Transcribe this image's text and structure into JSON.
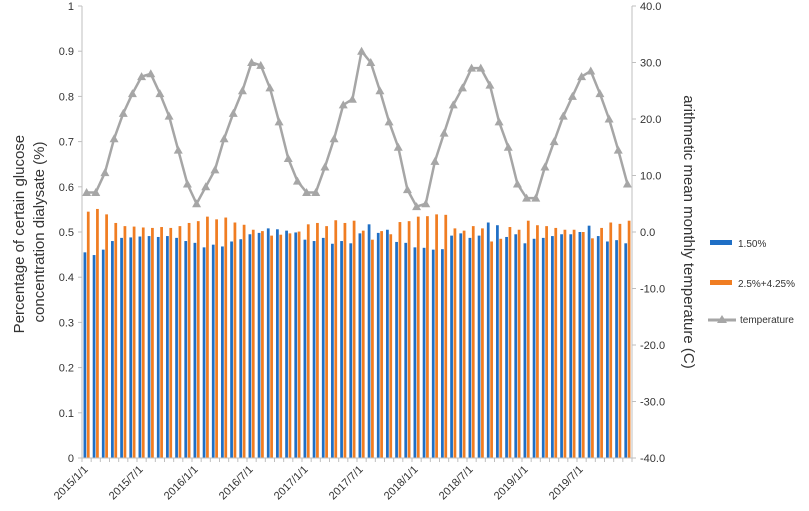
{
  "chart_data": {
    "type": "bar",
    "combo": "bar + line (secondary axis)",
    "title": "",
    "ylabel": [
      "Percentage of certain glucose",
      "concentration dialysate   (%)"
    ],
    "y2label": "arithmetic mean monthly  temperature  (C)",
    "xlabel": "",
    "ylim": [
      0,
      1
    ],
    "y_ticks": [
      "0",
      "0.1",
      "0.2",
      "0.3",
      "0.4",
      "0.5",
      "0.6",
      "0.7",
      "0.8",
      "0.9",
      "1"
    ],
    "y2lim": [
      -40,
      40
    ],
    "y2_ticks": [
      "-40.0",
      "-30.0",
      "-20.0",
      "-10.0",
      "0.0",
      "10.0",
      "20.0",
      "30.0",
      "40.0"
    ],
    "x_tick_labels": [
      {
        "index": 0,
        "label": "2015/1/1"
      },
      {
        "index": 6,
        "label": "2015/7/1"
      },
      {
        "index": 12,
        "label": "2016/1/1"
      },
      {
        "index": 18,
        "label": "2016/7/1"
      },
      {
        "index": 24,
        "label": "2017/1/1"
      },
      {
        "index": 30,
        "label": "2017/7/1"
      },
      {
        "index": 36,
        "label": "2018/1/1"
      },
      {
        "index": 42,
        "label": "2018/7/1"
      },
      {
        "index": 48,
        "label": "2019/1/1"
      },
      {
        "index": 54,
        "label": "2019/7/1"
      }
    ],
    "grid": false,
    "legend_position": "right",
    "series": [
      {
        "name": "1.50%",
        "kind": "bar",
        "axis": "left",
        "color": "#1f6fc5",
        "values": [
          0.455,
          0.449,
          0.461,
          0.48,
          0.487,
          0.488,
          0.49,
          0.491,
          0.489,
          0.491,
          0.487,
          0.48,
          0.476,
          0.466,
          0.472,
          0.468,
          0.479,
          0.484,
          0.495,
          0.498,
          0.508,
          0.506,
          0.503,
          0.499,
          0.483,
          0.48,
          0.487,
          0.474,
          0.48,
          0.475,
          0.497,
          0.517,
          0.498,
          0.505,
          0.478,
          0.476,
          0.466,
          0.465,
          0.461,
          0.462,
          0.492,
          0.497,
          0.487,
          0.492,
          0.521,
          0.515,
          0.489,
          0.495,
          0.475,
          0.485,
          0.487,
          0.491,
          0.495,
          0.495,
          0.5,
          0.514,
          0.491,
          0.479,
          0.482,
          0.475
        ]
      },
      {
        "name": "2.5%+4.25%",
        "kind": "bar",
        "axis": "left",
        "color": "#f07d22",
        "values": [
          0.545,
          0.551,
          0.539,
          0.52,
          0.513,
          0.512,
          0.51,
          0.509,
          0.511,
          0.509,
          0.513,
          0.52,
          0.524,
          0.534,
          0.528,
          0.532,
          0.521,
          0.516,
          0.505,
          0.502,
          0.492,
          0.494,
          0.497,
          0.501,
          0.517,
          0.52,
          0.513,
          0.526,
          0.52,
          0.525,
          0.503,
          0.483,
          0.502,
          0.495,
          0.522,
          0.524,
          0.534,
          0.535,
          0.539,
          0.538,
          0.508,
          0.503,
          0.513,
          0.508,
          0.479,
          0.485,
          0.511,
          0.505,
          0.525,
          0.515,
          0.513,
          0.509,
          0.505,
          0.505,
          0.5,
          0.486,
          0.509,
          0.521,
          0.518,
          0.525
        ]
      },
      {
        "name": "temperature",
        "kind": "line",
        "axis": "right",
        "color": "#a6a6a6",
        "values": [
          7.0,
          7.0,
          10.5,
          16.5,
          21.0,
          24.5,
          27.5,
          28.0,
          24.5,
          20.5,
          14.5,
          8.5,
          5.0,
          8.0,
          11.0,
          16.5,
          21.0,
          25.0,
          30.0,
          29.5,
          25.5,
          19.5,
          13.0,
          9.0,
          7.0,
          7.0,
          11.5,
          16.5,
          22.5,
          23.5,
          32.0,
          30.0,
          25.0,
          19.5,
          15.0,
          7.5,
          4.5,
          5.0,
          12.5,
          17.5,
          22.5,
          25.5,
          29.0,
          29.0,
          26.0,
          19.5,
          15.0,
          8.5,
          6.0,
          6.0,
          11.5,
          16.0,
          20.5,
          24.0,
          27.5,
          28.5,
          24.5,
          20.0,
          14.5,
          8.5
        ]
      }
    ]
  }
}
